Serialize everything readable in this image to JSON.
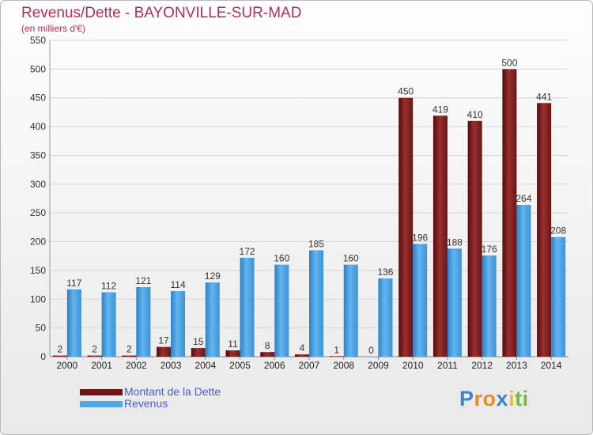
{
  "chart_data": {
    "type": "bar",
    "title": "Revenus/Dette - BAYONVILLE-SUR-MAD",
    "subtitle": "(en milliers d'€)",
    "categories": [
      "2000",
      "2001",
      "2002",
      "2003",
      "2004",
      "2005",
      "2006",
      "2007",
      "2008",
      "2009",
      "2010",
      "2011",
      "2012",
      "2013",
      "2014"
    ],
    "series": [
      {
        "name": "Montant de la Dette",
        "color": "#7a1b1b",
        "values": [
          2,
          2,
          2,
          17,
          15,
          11,
          8,
          4,
          1,
          0,
          450,
          419,
          410,
          500,
          441
        ]
      },
      {
        "name": "Revenus",
        "color": "#4ea7e8",
        "values": [
          117,
          112,
          121,
          114,
          129,
          172,
          160,
          185,
          160,
          136,
          196,
          188,
          176,
          264,
          208
        ]
      }
    ],
    "ylim": [
      0,
      550
    ],
    "yticks": [
      0,
      50,
      100,
      150,
      200,
      250,
      300,
      350,
      400,
      450,
      500,
      550
    ],
    "grid": true,
    "legend_position": "bottom-left"
  },
  "logo": {
    "letters": [
      "P",
      "r",
      "o",
      "x",
      "i",
      "t",
      "i"
    ],
    "colors": [
      "#3f82c7",
      "#e8892b",
      "#e8892b",
      "#3f82c7",
      "#e5c12a",
      "#75b843",
      "#75b843"
    ]
  }
}
